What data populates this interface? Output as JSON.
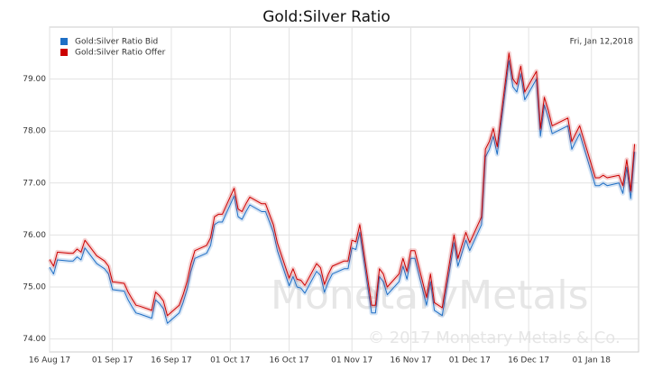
{
  "chart_data": {
    "type": "line",
    "title": "Gold:Silver Ratio",
    "annotation": "Fri, Jan 12,2018",
    "watermark": "MonetaryMetals",
    "copyright": "© 2017 Monetary Metals & Co.",
    "legend": "top-left",
    "grid": true,
    "xlim": [
      "2017-08-16",
      "2018-01-13"
    ],
    "xticks": [
      {
        "value": "2017-08-16",
        "label": "16 Aug 17"
      },
      {
        "value": "2017-09-01",
        "label": "01 Sep 17"
      },
      {
        "value": "2017-09-16",
        "label": "16 Sep 17"
      },
      {
        "value": "2017-10-01",
        "label": "01 Oct 17"
      },
      {
        "value": "2017-10-16",
        "label": "16 Oct 17"
      },
      {
        "value": "2017-11-01",
        "label": "01 Nov 17"
      },
      {
        "value": "2017-11-16",
        "label": "16 Nov 17"
      },
      {
        "value": "2017-12-01",
        "label": "01 Dec 17"
      },
      {
        "value": "2017-12-16",
        "label": "16 Dec 17"
      },
      {
        "value": "2018-01-01",
        "label": "01 Jan 18"
      }
    ],
    "ylim": [
      73.75,
      80.0
    ],
    "yticks": [
      {
        "value": 74,
        "label": "74.00"
      },
      {
        "value": 75,
        "label": "75.00"
      },
      {
        "value": 76,
        "label": "76.00"
      },
      {
        "value": 77,
        "label": "77.00"
      },
      {
        "value": 78,
        "label": "78.00"
      },
      {
        "value": 79,
        "label": "79.00"
      }
    ],
    "x": [
      "2017-08-16",
      "2017-08-17",
      "2017-08-18",
      "2017-08-21",
      "2017-08-22",
      "2017-08-23",
      "2017-08-24",
      "2017-08-25",
      "2017-08-28",
      "2017-08-29",
      "2017-08-30",
      "2017-08-31",
      "2017-09-01",
      "2017-09-04",
      "2017-09-05",
      "2017-09-06",
      "2017-09-07",
      "2017-09-08",
      "2017-09-11",
      "2017-09-12",
      "2017-09-13",
      "2017-09-14",
      "2017-09-15",
      "2017-09-18",
      "2017-09-19",
      "2017-09-20",
      "2017-09-21",
      "2017-09-22",
      "2017-09-25",
      "2017-09-26",
      "2017-09-27",
      "2017-09-28",
      "2017-09-29",
      "2017-10-02",
      "2017-10-03",
      "2017-10-04",
      "2017-10-05",
      "2017-10-06",
      "2017-10-09",
      "2017-10-10",
      "2017-10-11",
      "2017-10-12",
      "2017-10-13",
      "2017-10-16",
      "2017-10-17",
      "2017-10-18",
      "2017-10-19",
      "2017-10-20",
      "2017-10-23",
      "2017-10-24",
      "2017-10-25",
      "2017-10-26",
      "2017-10-27",
      "2017-10-30",
      "2017-10-31",
      "2017-11-01",
      "2017-11-02",
      "2017-11-03",
      "2017-11-06",
      "2017-11-07",
      "2017-11-08",
      "2017-11-09",
      "2017-11-10",
      "2017-11-13",
      "2017-11-14",
      "2017-11-15",
      "2017-11-16",
      "2017-11-17",
      "2017-11-20",
      "2017-11-21",
      "2017-11-22",
      "2017-11-24",
      "2017-11-27",
      "2017-11-28",
      "2017-11-29",
      "2017-11-30",
      "2017-12-01",
      "2017-12-04",
      "2017-12-05",
      "2017-12-06",
      "2017-12-07",
      "2017-12-08",
      "2017-12-11",
      "2017-12-12",
      "2017-12-13",
      "2017-12-14",
      "2017-12-15",
      "2017-12-18",
      "2017-12-19",
      "2017-12-20",
      "2017-12-21",
      "2017-12-22",
      "2017-12-26",
      "2017-12-27",
      "2017-12-28",
      "2017-12-29",
      "2018-01-02",
      "2018-01-03",
      "2018-01-04",
      "2018-01-05",
      "2018-01-08",
      "2018-01-09",
      "2018-01-10",
      "2018-01-11",
      "2018-01-12"
    ],
    "series": [
      {
        "name": "Gold:Silver Ratio Bid",
        "color": "#1f6fc5",
        "values": [
          75.38,
          75.25,
          75.52,
          75.5,
          75.5,
          75.58,
          75.52,
          75.75,
          75.45,
          75.4,
          75.35,
          75.25,
          74.95,
          74.92,
          74.75,
          74.62,
          74.5,
          74.48,
          74.4,
          74.75,
          74.68,
          74.58,
          74.3,
          74.5,
          74.7,
          74.95,
          75.3,
          75.55,
          75.65,
          75.8,
          76.2,
          76.25,
          76.25,
          76.75,
          76.35,
          76.3,
          76.45,
          76.58,
          76.45,
          76.45,
          76.25,
          76.05,
          75.7,
          75.02,
          75.2,
          75.0,
          74.98,
          74.88,
          75.3,
          75.22,
          74.9,
          75.1,
          75.25,
          75.35,
          75.35,
          75.75,
          75.72,
          76.05,
          74.5,
          74.5,
          75.2,
          75.1,
          74.85,
          75.1,
          75.4,
          75.15,
          75.55,
          75.55,
          74.65,
          75.1,
          74.55,
          74.45,
          75.85,
          75.4,
          75.65,
          75.9,
          75.7,
          76.2,
          77.5,
          77.65,
          77.9,
          77.55,
          79.35,
          78.85,
          78.75,
          79.1,
          78.6,
          79.0,
          77.9,
          78.5,
          78.25,
          77.95,
          78.1,
          77.65,
          77.8,
          77.95,
          76.95,
          76.95,
          77.0,
          76.95,
          77.0,
          76.8,
          77.3,
          76.7,
          77.6
        ]
      },
      {
        "name": "Gold:Silver Ratio Offer",
        "color": "#cc0000",
        "values": [
          75.53,
          75.4,
          75.67,
          75.65,
          75.65,
          75.73,
          75.67,
          75.9,
          75.6,
          75.55,
          75.5,
          75.4,
          75.1,
          75.07,
          74.9,
          74.77,
          74.65,
          74.63,
          74.55,
          74.9,
          74.83,
          74.73,
          74.45,
          74.65,
          74.85,
          75.1,
          75.45,
          75.7,
          75.8,
          75.95,
          76.35,
          76.4,
          76.4,
          76.9,
          76.5,
          76.45,
          76.6,
          76.73,
          76.6,
          76.6,
          76.4,
          76.2,
          75.85,
          75.17,
          75.35,
          75.15,
          75.13,
          75.03,
          75.45,
          75.37,
          75.05,
          75.25,
          75.4,
          75.5,
          75.5,
          75.9,
          75.87,
          76.2,
          74.65,
          74.65,
          75.35,
          75.25,
          75.0,
          75.25,
          75.55,
          75.3,
          75.7,
          75.7,
          74.8,
          75.25,
          74.7,
          74.6,
          76.0,
          75.55,
          75.8,
          76.05,
          75.85,
          76.35,
          77.65,
          77.8,
          78.05,
          77.7,
          79.5,
          79.0,
          78.9,
          79.25,
          78.75,
          79.15,
          78.05,
          78.65,
          78.4,
          78.1,
          78.25,
          77.8,
          77.95,
          78.1,
          77.1,
          77.1,
          77.15,
          77.1,
          77.15,
          76.95,
          77.45,
          76.85,
          77.75
        ]
      }
    ]
  }
}
